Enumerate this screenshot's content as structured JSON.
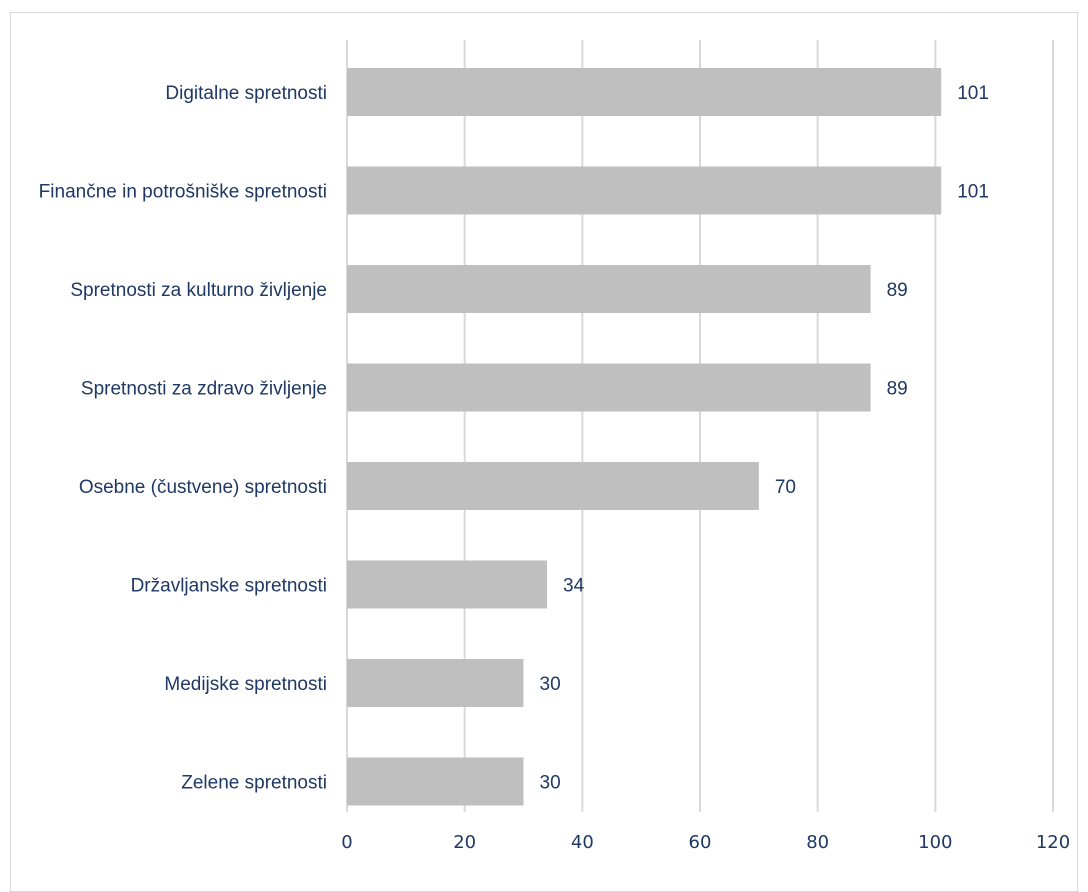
{
  "chart_data": {
    "type": "bar",
    "orientation": "horizontal",
    "categories": [
      "Digitalne spretnosti",
      "Finančne in potrošniške spretnosti",
      "Spretnosti za kulturno življenje",
      "Spretnosti za zdravo življenje",
      "Osebne (čustvene) spretnosti",
      "Državljanske spretnosti",
      "Medijske spretnosti",
      "Zelene spretnosti"
    ],
    "values": [
      101,
      101,
      89,
      89,
      70,
      34,
      30,
      30
    ],
    "data_labels": [
      "101",
      "101",
      "89",
      "89",
      "70",
      "34",
      "30",
      "30"
    ],
    "title": "",
    "xlabel": "",
    "ylabel": "",
    "xlim": [
      0,
      120
    ],
    "x_ticks": [
      0,
      20,
      40,
      60,
      80,
      100,
      120
    ],
    "x_tick_labels": [
      "0",
      "20",
      "40",
      "60",
      "80",
      "100",
      "120"
    ],
    "grid": "vertical",
    "legend": "none",
    "colors": {
      "bar": "#bfbfbf",
      "gridline": "#d9d9d9",
      "text": "#1f3864"
    }
  }
}
